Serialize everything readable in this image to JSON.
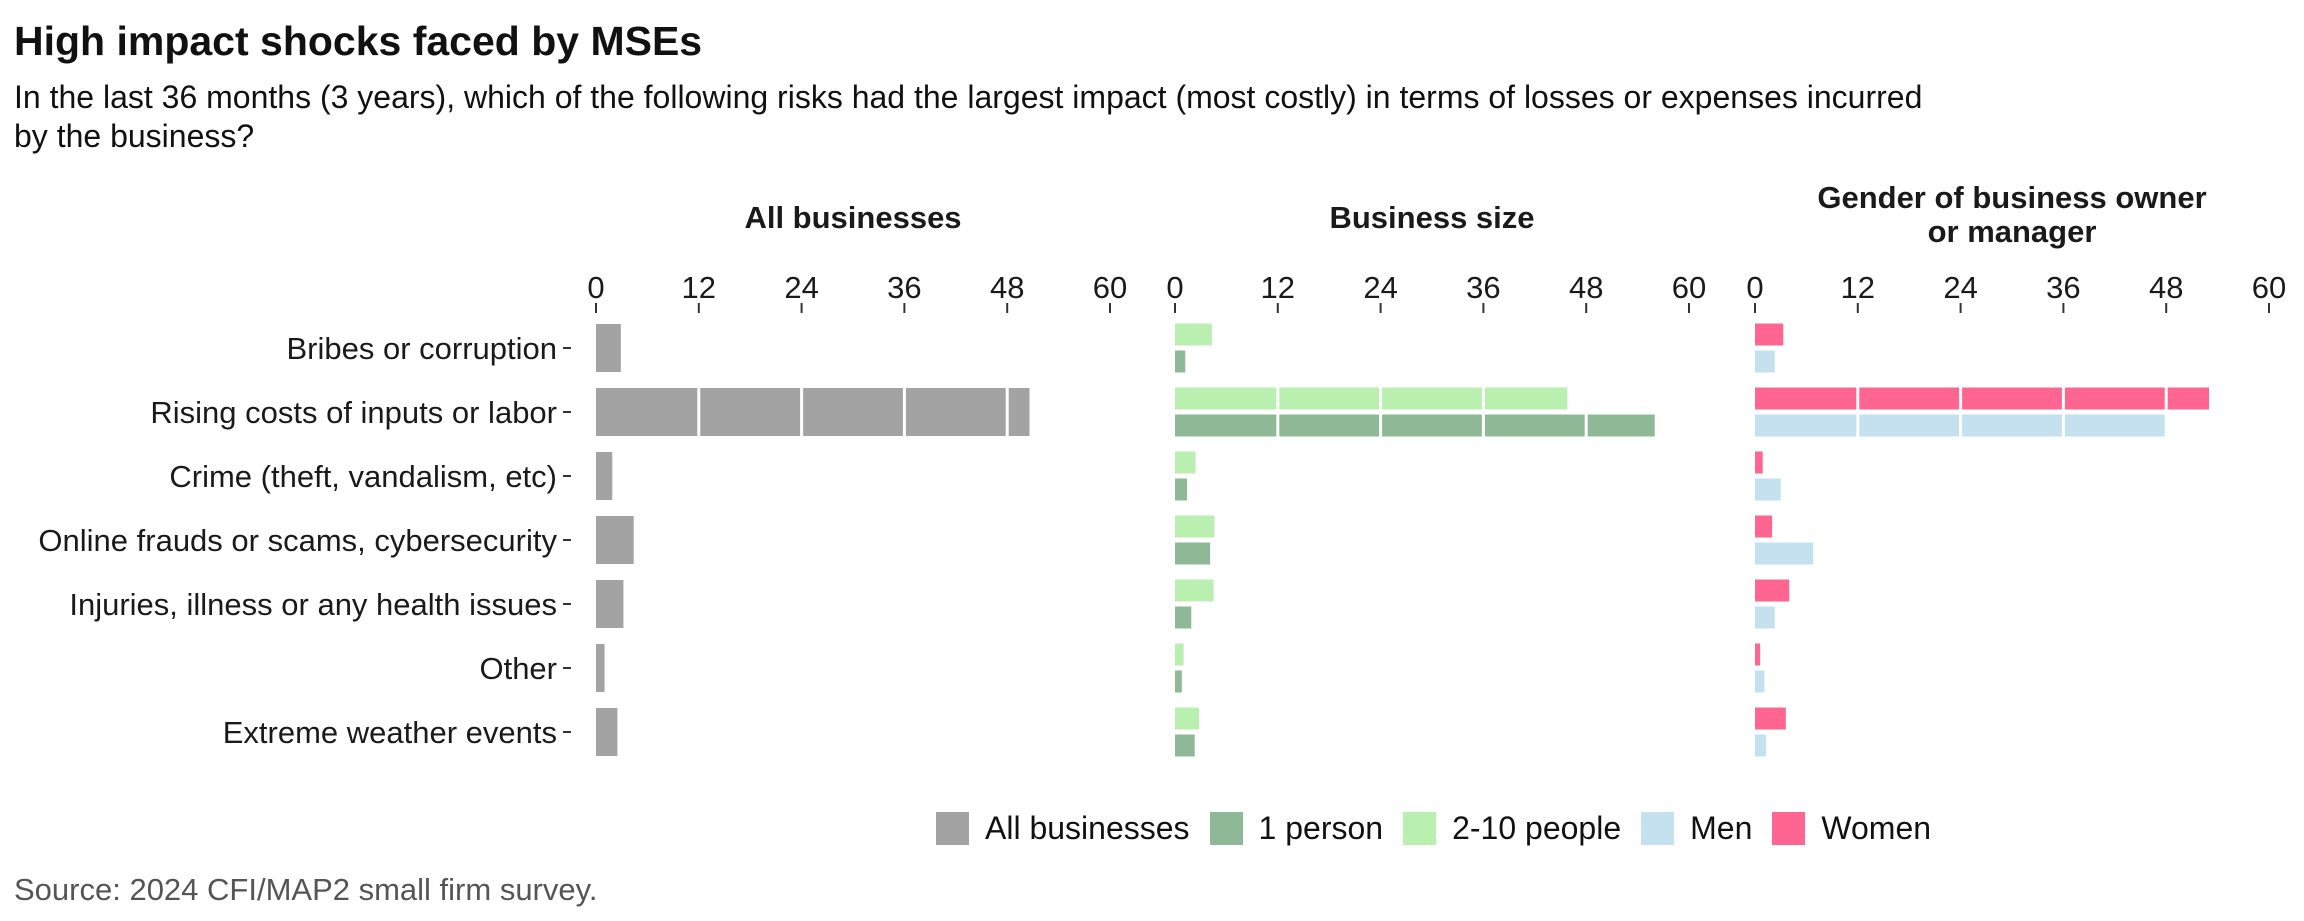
{
  "title": "High impact shocks faced by MSEs",
  "subtitle": "In the last 36 months (3 years), which of the following risks had the largest impact (most costly) in terms of losses or expenses incurred by the business?",
  "source": "Source: 2024 CFI/MAP2 small firm survey.",
  "legend": [
    {
      "label": "All businesses",
      "color": "#a3a3a3"
    },
    {
      "label": "1 person",
      "color": "#8fb996"
    },
    {
      "label": "2-10 people",
      "color": "#b9f0b0"
    },
    {
      "label": "Men",
      "color": "#c5e0ef"
    },
    {
      "label": "Women",
      "color": "#fe6590"
    }
  ],
  "chart_data": [
    {
      "type": "bar",
      "orientation": "horizontal",
      "title": "All businesses",
      "categories": [
        "Bribes or corruption",
        "Rising costs of inputs or labor",
        "Crime (theft, vandalism, etc)",
        "Online frauds or scams, cybersecurity",
        "Injuries, illness or any health issues",
        "Other",
        "Extreme weather events"
      ],
      "xlim": [
        0,
        60
      ],
      "xticks": [
        0,
        12,
        24,
        36,
        48,
        60
      ],
      "series": [
        {
          "name": "All businesses",
          "color": "#a3a3a3",
          "values": [
            2.9,
            50.6,
            1.9,
            4.4,
            3.2,
            1.0,
            2.5
          ]
        }
      ]
    },
    {
      "type": "bar",
      "orientation": "horizontal",
      "title": "Business size",
      "categories": [
        "Bribes or corruption",
        "Rising costs of inputs or labor",
        "Crime (theft, vandalism, etc)",
        "Online frauds or scams, cybersecurity",
        "Injuries, illness or any health issues",
        "Other",
        "Extreme weather events"
      ],
      "xlim": [
        0,
        60
      ],
      "xticks": [
        0,
        12,
        24,
        36,
        48,
        60
      ],
      "series": [
        {
          "name": "2-10 people",
          "color": "#b9f0b0",
          "values": [
            4.3,
            45.8,
            2.4,
            4.6,
            4.5,
            1.0,
            2.8
          ]
        },
        {
          "name": "1 person",
          "color": "#8fb996",
          "values": [
            1.2,
            56.0,
            1.4,
            4.1,
            1.9,
            0.8,
            2.3
          ]
        }
      ]
    },
    {
      "type": "bar",
      "orientation": "horizontal",
      "title": "Gender of business owner or manager",
      "categories": [
        "Bribes or corruption",
        "Rising costs of inputs or labor",
        "Crime (theft, vandalism, etc)",
        "Online frauds or scams, cybersecurity",
        "Injuries, illness or any health issues",
        "Other",
        "Extreme weather events"
      ],
      "xlim": [
        0,
        60
      ],
      "xticks": [
        0,
        12,
        24,
        36,
        48,
        60
      ],
      "series": [
        {
          "name": "Women",
          "color": "#fe6590",
          "values": [
            3.3,
            53.0,
            0.9,
            2.0,
            4.0,
            0.6,
            3.6
          ]
        },
        {
          "name": "Men",
          "color": "#c5e0ef",
          "values": [
            2.3,
            48.0,
            3.0,
            6.8,
            2.3,
            1.1,
            1.3
          ]
        }
      ]
    }
  ]
}
